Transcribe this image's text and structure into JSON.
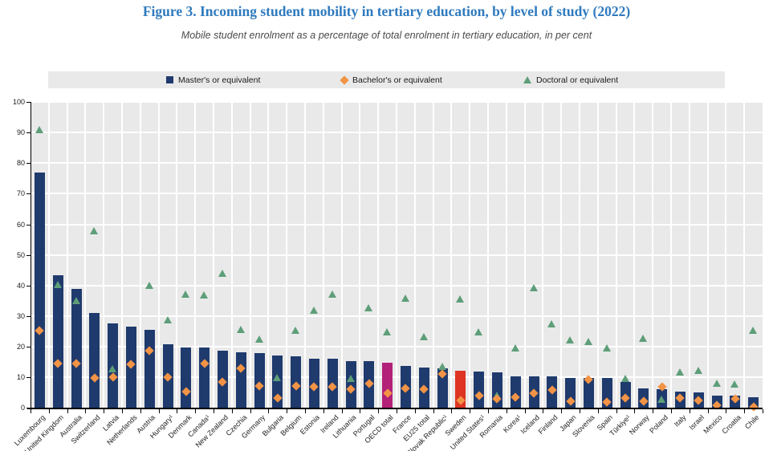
{
  "title": "Figure 3. Incoming student mobility in tertiary education, by level of study (2022)",
  "subtitle": "Mobile student enrolment as a percentage of total enrolment in tertiary education, in per cent",
  "legend": [
    {
      "label": "Master's or equivalent",
      "marker": "square-icon"
    },
    {
      "label": "Bachelor's or equivalent",
      "marker": "diamond-icon"
    },
    {
      "label": "Doctoral or equivalent",
      "marker": "triangle-icon"
    }
  ],
  "colors": {
    "master_bar": "#1f3a6d",
    "bachelor_marker": "#f29345",
    "doctoral_marker": "#5d9e79",
    "oecd_total_bar": "#b32078",
    "sweden_bar": "#de3423",
    "title_text": "#2e7abf",
    "plot_background": "#e9e9e9",
    "gridline": "#ffffff"
  },
  "chart_data": {
    "type": "bar",
    "title": "Figure 3. Incoming student mobility in tertiary education, by level of study (2022)",
    "subtitle": "Mobile student enrolment as a percentage of total enrolment in tertiary education, in per cent",
    "ylabel": "",
    "xlabel": "",
    "ylim": [
      0,
      100
    ],
    "yticks": [
      0,
      10,
      20,
      30,
      40,
      50,
      60,
      70,
      80,
      90,
      100
    ],
    "grid": true,
    "legend_position": "top",
    "categories": [
      "Luxembourg",
      "United Kingdom",
      "Australia",
      "Switzerland",
      "Latvia",
      "Netherlands",
      "Austria",
      "Hungary¹",
      "Denmark",
      "Canada¹",
      "New Zealand",
      "Czechia",
      "Germany",
      "Bulgaria",
      "Belgium",
      "Estonia",
      "Ireland",
      "Lithuania",
      "Portugal",
      "OECD total",
      "France",
      "EU25 total",
      "Slovak Republic¹",
      "Sweden",
      "United States¹",
      "Romania",
      "Korea¹",
      "Iceland",
      "Finland",
      "Japan",
      "Slovenia",
      "Spain",
      "Türkiye¹",
      "Norway",
      "Poland",
      "Italy",
      "Israel",
      "Mexico",
      "Croatia",
      "Chile"
    ],
    "series": [
      {
        "name": "Master's or equivalent",
        "render": "bar",
        "values": [
          76.9,
          43.4,
          38.9,
          31.1,
          27.6,
          26.5,
          25.6,
          20.8,
          19.8,
          19.8,
          18.8,
          18.1,
          17.9,
          17.2,
          17.0,
          16.1,
          16.1,
          15.3,
          15.2,
          14.7,
          13.6,
          13.2,
          13.0,
          12.2,
          11.9,
          11.6,
          10.3,
          10.3,
          10.2,
          9.9,
          9.9,
          9.8,
          8.6,
          6.3,
          6.0,
          5.3,
          5.1,
          4.1,
          4.0,
          3.4
        ]
      },
      {
        "name": "Bachelor's or equivalent",
        "render": "diamond",
        "values": [
          25.3,
          14.4,
          14.4,
          9.8,
          10.1,
          14.2,
          18.6,
          10.0,
          5.3,
          14.4,
          8.6,
          13.0,
          7.1,
          3.3,
          7.3,
          6.9,
          6.8,
          6.1,
          8.0,
          4.9,
          6.5,
          6.2,
          11.1,
          2.5,
          3.9,
          2.9,
          3.6,
          4.8,
          5.8,
          2.3,
          9.3,
          1.8,
          3.2,
          2.1,
          7.0,
          3.3,
          2.4,
          0.8,
          2.9,
          0.4
        ]
      },
      {
        "name": "Doctoral or equivalent",
        "render": "triangle",
        "values": [
          90.9,
          40.4,
          35.0,
          58.0,
          12.9,
          null,
          40.0,
          28.9,
          37.2,
          37.0,
          43.9,
          25.7,
          22.4,
          10.0,
          25.3,
          31.9,
          37.2,
          9.6,
          32.8,
          24.9,
          35.8,
          23.3,
          13.6,
          35.5,
          24.9,
          4.2,
          19.7,
          39.4,
          27.6,
          22.3,
          21.6,
          19.7,
          9.6,
          22.7,
          2.9,
          11.8,
          12.4,
          8.2,
          7.7,
          25.3
        ]
      }
    ],
    "highlighted_bars": {
      "OECD total": "#b32078",
      "Sweden": "#de3423"
    }
  }
}
